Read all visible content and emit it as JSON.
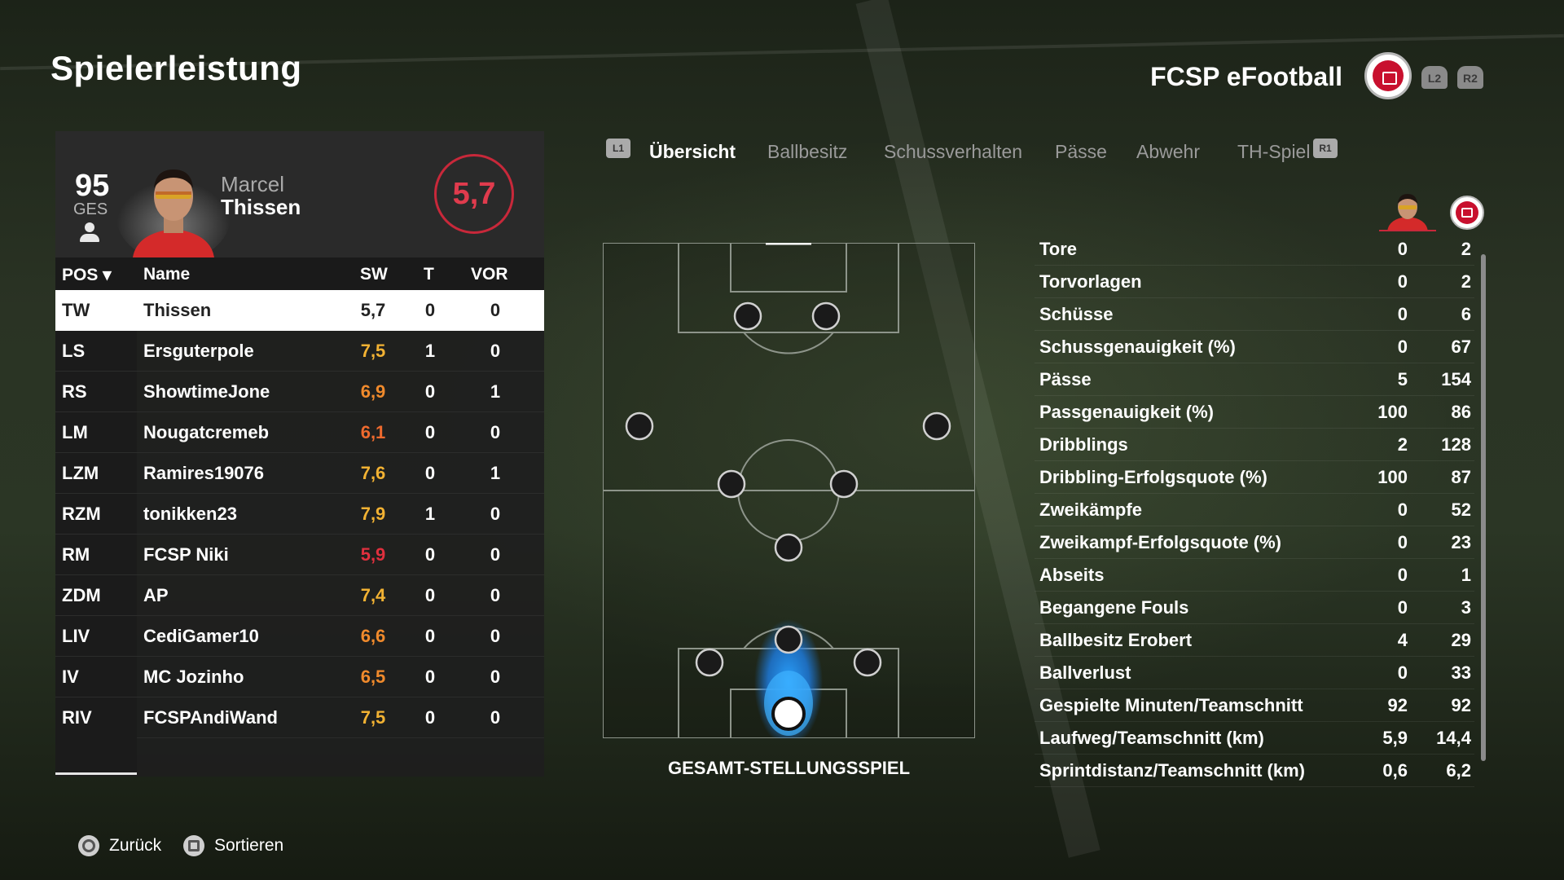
{
  "header": {
    "title": "Spielerleistung",
    "team_name": "FCSP eFootball",
    "l2": "L2",
    "r2": "R2"
  },
  "player": {
    "overall": "95",
    "overall_label": "GES",
    "first_name": "Marcel",
    "last_name": "Thissen",
    "rating": "5,7"
  },
  "table": {
    "headers": {
      "pos": "POS ▾",
      "name": "Name",
      "sw": "SW",
      "t": "T",
      "vor": "VOR"
    },
    "rows": [
      {
        "pos": "TW",
        "name": "Thissen",
        "sw": "5,7",
        "t": "0",
        "vor": "0",
        "sw_color": "#222222"
      },
      {
        "pos": "LS",
        "name": "Ersguterpole",
        "sw": "7,5",
        "t": "1",
        "vor": "0",
        "sw_color": "#f2b233"
      },
      {
        "pos": "RS",
        "name": "ShowtimeJone",
        "sw": "6,9",
        "t": "0",
        "vor": "1",
        "sw_color": "#f08a2c"
      },
      {
        "pos": "LM",
        "name": "Nougatcremeb",
        "sw": "6,1",
        "t": "0",
        "vor": "0",
        "sw_color": "#ee6a2e"
      },
      {
        "pos": "LZM",
        "name": "Ramires19076",
        "sw": "7,6",
        "t": "0",
        "vor": "1",
        "sw_color": "#f2b233"
      },
      {
        "pos": "RZM",
        "name": "tonikken23",
        "sw": "7,9",
        "t": "1",
        "vor": "0",
        "sw_color": "#f2b233"
      },
      {
        "pos": "RM",
        "name": "FCSP Niki",
        "sw": "5,9",
        "t": "0",
        "vor": "0",
        "sw_color": "#e0303e"
      },
      {
        "pos": "ZDM",
        "name": "AP",
        "sw": "7,4",
        "t": "0",
        "vor": "0",
        "sw_color": "#f2b233"
      },
      {
        "pos": "LIV",
        "name": "CediGamer10",
        "sw": "6,6",
        "t": "0",
        "vor": "0",
        "sw_color": "#f08a2c"
      },
      {
        "pos": "IV",
        "name": "MC Jozinho",
        "sw": "6,5",
        "t": "0",
        "vor": "0",
        "sw_color": "#f08a2c"
      },
      {
        "pos": "RIV",
        "name": "FCSPAndiWand",
        "sw": "7,5",
        "t": "0",
        "vor": "0",
        "sw_color": "#f2b233"
      }
    ]
  },
  "tabs": {
    "l1": "L1",
    "r1": "R1",
    "items": [
      {
        "label": "Übersicht",
        "active": true
      },
      {
        "label": "Ballbesitz",
        "active": false
      },
      {
        "label": "Schussverhalten",
        "active": false
      },
      {
        "label": "Pässe",
        "active": false
      },
      {
        "label": "Abwehr",
        "active": false
      },
      {
        "label": "TH-Spiel",
        "active": false
      }
    ]
  },
  "pitch": {
    "caption": "GESAMT-STELLUNGSSPIEL"
  },
  "stats": [
    {
      "label": "Tore",
      "player": "0",
      "team": "2"
    },
    {
      "label": "Torvorlagen",
      "player": "0",
      "team": "2"
    },
    {
      "label": "Schüsse",
      "player": "0",
      "team": "6"
    },
    {
      "label": "Schussgenauigkeit (%)",
      "player": "0",
      "team": "67"
    },
    {
      "label": "Pässe",
      "player": "5",
      "team": "154"
    },
    {
      "label": "Passgenauigkeit (%)",
      "player": "100",
      "team": "86"
    },
    {
      "label": "Dribblings",
      "player": "2",
      "team": "128"
    },
    {
      "label": "Dribbling-Erfolgsquote (%)",
      "player": "100",
      "team": "87"
    },
    {
      "label": "Zweikämpfe",
      "player": "0",
      "team": "52"
    },
    {
      "label": "Zweikampf-Erfolgsquote (%)",
      "player": "0",
      "team": "23"
    },
    {
      "label": "Abseits",
      "player": "0",
      "team": "1"
    },
    {
      "label": "Begangene Fouls",
      "player": "0",
      "team": "3"
    },
    {
      "label": "Ballbesitz Erobert",
      "player": "4",
      "team": "29"
    },
    {
      "label": "Ballverlust",
      "player": "0",
      "team": "33"
    },
    {
      "label": "Gespielte Minuten/Teamschnitt",
      "player": "92",
      "team": "92"
    },
    {
      "label": "Laufweg/Teamschnitt (km)",
      "player": "5,9",
      "team": "14,4"
    },
    {
      "label": "Sprintdistanz/Teamschnitt (km)",
      "player": "0,6",
      "team": "6,2"
    }
  ],
  "footer": {
    "back": "Zurück",
    "sort": "Sortieren"
  },
  "colors": {
    "accent_red": "#c8283a",
    "rating_high": "#f2b233",
    "rating_mid": "#f08a2c",
    "rating_low": "#e0303e"
  }
}
